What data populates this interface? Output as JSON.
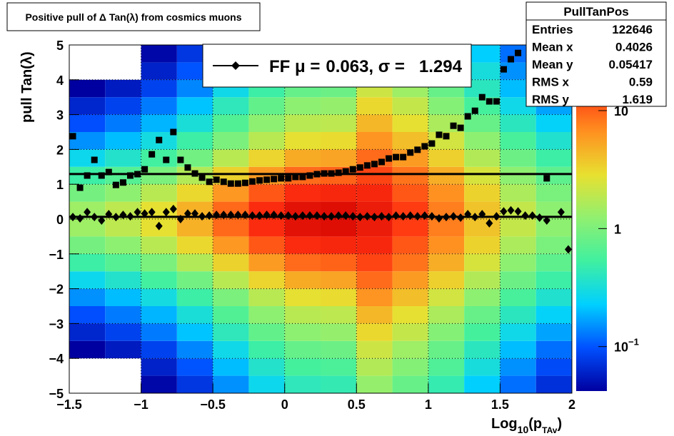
{
  "chart_data": {
    "type": "histogram2d",
    "title": "Positive pull of Δ Tan(λ) from cosmics muons",
    "x_label": {
      "main": "Log",
      "sub": "10",
      "open": "(p",
      "sub2": "TAv",
      "close": ")"
    },
    "y_label": "pull Tan(λ)",
    "xlim": [
      -1.5,
      2
    ],
    "ylim": [
      -5,
      5
    ],
    "zlim": [
      0.042,
      36
    ],
    "zlog": true,
    "grid": true,
    "xticks": [
      {
        "value": -1.5,
        "label": "−1.5"
      },
      {
        "value": -1,
        "label": "−1"
      },
      {
        "value": -0.5,
        "label": "−0.5"
      },
      0,
      0.5,
      1,
      1.5,
      2
    ],
    "yticks": [
      {
        "value": -5,
        "label": "−5"
      },
      {
        "value": -4,
        "label": "−4"
      },
      {
        "value": -3,
        "label": "−3"
      },
      {
        "value": -2,
        "label": "−2"
      },
      {
        "value": -1,
        "label": "−1"
      },
      0,
      1,
      2,
      3,
      4,
      5
    ],
    "zticks": [
      {
        "value": 0.1,
        "label": "10",
        "exponent": "−1"
      },
      1,
      10
    ],
    "palette": [
      "#0000a0",
      "#0050ff",
      "#00d0ff",
      "#40f0a0",
      "#90f070",
      "#e8e030",
      "#ff9020",
      "#ff3010",
      "#d00000"
    ],
    "xbins": [
      -1.5,
      -1.25,
      -1,
      -0.75,
      -0.5,
      -0.25,
      0,
      0.25,
      0.5,
      0.75,
      1,
      1.25,
      1.5,
      1.75,
      2
    ],
    "ybins": [
      -5,
      -4.5,
      -4,
      -3.5,
      -3,
      -2.5,
      -2,
      -1.5,
      -1,
      -0.5,
      0,
      0.5,
      1,
      1.5,
      2,
      2.5,
      3,
      3.5,
      4,
      4.5,
      5
    ],
    "z": [
      [
        0.023,
        0.03,
        0.045,
        0.075,
        0.15,
        0.27,
        0.42,
        0.45,
        1.3,
        0.81,
        0.46,
        0.23,
        0.12,
        0.07
      ],
      [
        0.03,
        0.04,
        0.06,
        0.1,
        0.2,
        0.36,
        0.56,
        0.6,
        1.7,
        1.1,
        0.62,
        0.31,
        0.15,
        0.092
      ],
      [
        0.042,
        0.056,
        0.084,
        0.14,
        0.28,
        0.5,
        0.78,
        0.84,
        2.2,
        1.4,
        0.8,
        0.4,
        0.2,
        0.12
      ],
      [
        0.063,
        0.084,
        0.13,
        0.21,
        0.42,
        0.76,
        1.2,
        1.3,
        3.1,
        2,
        1.1,
        0.56,
        0.28,
        0.17
      ],
      [
        0.096,
        0.13,
        0.19,
        0.32,
        0.64,
        1.2,
        1.8,
        1.9,
        4.4,
        2.8,
        1.6,
        0.8,
        0.4,
        0.24
      ],
      [
        0.15,
        0.2,
        0.3,
        0.5,
        1,
        1.8,
        2.8,
        3,
        6.4,
        4.1,
        2.3,
        1.2,
        0.58,
        0.35
      ],
      [
        0.27,
        0.36,
        0.54,
        0.9,
        1.8,
        3.2,
        5,
        5.4,
        9.2,
        5.9,
        3.4,
        1.7,
        0.84,
        0.5
      ],
      [
        0.5,
        0.66,
        0.99,
        1.7,
        3.3,
        5.9,
        9.2,
        9.9,
        13,
        8.5,
        4.9,
        2.4,
        1.2,
        0.73
      ],
      [
        0.92,
        1.2,
        1.8,
        3.1,
        6.1,
        11,
        17,
        18,
        18,
        11,
        6.6,
        3.3,
        1.6,
        0.98
      ],
      [
        1.4,
        1.9,
        2.8,
        4.7,
        9.4,
        17,
        26,
        28,
        22,
        14,
        7.8,
        3.9,
        2,
        1.2
      ],
      [
        1.4,
        1.9,
        2.8,
        4.7,
        9.4,
        17,
        26,
        28,
        22,
        14,
        7.8,
        3.9,
        2,
        1.2
      ],
      [
        0.92,
        1.2,
        1.8,
        3.1,
        6.1,
        11,
        17,
        18,
        18,
        11,
        6.6,
        3.3,
        1.6,
        0.98
      ],
      [
        0.5,
        0.66,
        0.99,
        1.7,
        3.3,
        5.9,
        9.2,
        9.9,
        13,
        8.5,
        4.9,
        2.4,
        1.2,
        0.73
      ],
      [
        0.27,
        0.36,
        0.54,
        0.9,
        1.8,
        3.2,
        5,
        5.4,
        9.2,
        5.9,
        3.4,
        1.7,
        0.84,
        0.5
      ],
      [
        0.15,
        0.2,
        0.3,
        0.5,
        1,
        1.8,
        2.8,
        3,
        6.4,
        4.1,
        2.3,
        1.2,
        0.58,
        0.35
      ],
      [
        0.096,
        0.13,
        0.19,
        0.32,
        0.64,
        1.2,
        1.8,
        1.9,
        4.4,
        2.8,
        1.6,
        0.8,
        0.4,
        0.24
      ],
      [
        0.063,
        0.084,
        0.13,
        0.21,
        0.42,
        0.76,
        1.2,
        1.3,
        3.1,
        2,
        1.1,
        0.56,
        0.28,
        0.17
      ],
      [
        0.042,
        0.056,
        0.084,
        0.14,
        0.28,
        0.5,
        0.78,
        0.84,
        2.2,
        1.4,
        0.8,
        0.4,
        0.2,
        0.12
      ],
      [
        0.03,
        0.04,
        0.06,
        0.1,
        0.2,
        0.36,
        0.56,
        0.6,
        1.7,
        1.1,
        0.62,
        0.31,
        0.15,
        0.092
      ],
      [
        0.023,
        0.03,
        0.045,
        0.075,
        0.15,
        0.27,
        0.42,
        0.45,
        1.3,
        0.81,
        0.46,
        0.23,
        0.12,
        0.07
      ]
    ],
    "x": [
      -1.475,
      -1.425,
      -1.375,
      -1.325,
      -1.275,
      -1.225,
      -1.175,
      -1.125,
      -1.075,
      -1.025,
      -0.975,
      -0.925,
      -0.875,
      -0.825,
      -0.775,
      -0.725,
      -0.675,
      -0.625,
      -0.575,
      -0.525,
      -0.475,
      -0.425,
      -0.375,
      -0.325,
      -0.275,
      -0.225,
      -0.175,
      -0.125,
      -0.075,
      -0.025,
      0.025,
      0.075,
      0.125,
      0.175,
      0.225,
      0.275,
      0.325,
      0.375,
      0.425,
      0.475,
      0.525,
      0.575,
      0.625,
      0.675,
      0.725,
      0.775,
      0.825,
      0.875,
      0.925,
      0.975,
      1.025,
      1.075,
      1.125,
      1.175,
      1.225,
      1.275,
      1.325,
      1.375,
      1.425,
      1.475,
      1.525,
      1.575,
      1.625,
      1.675,
      1.725,
      1.775,
      1.825,
      1.875,
      1.925,
      1.975
    ],
    "series": [
      {
        "marker": "square",
        "color": "#000000",
        "values": [
          2.38,
          0.9,
          1.25,
          1.7,
          1.25,
          1.35,
          0.98,
          1.05,
          1.25,
          1.29,
          1.43,
          1.86,
          2.27,
          1.7,
          2.5,
          1.7,
          1.48,
          1.31,
          1.19,
          1.07,
          1.13,
          1.07,
          1.02,
          1.02,
          1.04,
          1.08,
          1.11,
          1.13,
          1.15,
          1.17,
          1.17,
          1.21,
          1.21,
          1.25,
          1.29,
          1.31,
          1.31,
          1.33,
          1.37,
          1.43,
          1.48,
          1.54,
          1.58,
          1.64,
          1.74,
          1.78,
          1.78,
          1.91,
          1.99,
          2.09,
          2.17,
          2.42,
          2.38,
          2.68,
          2.62,
          2.95,
          3.11,
          3.5,
          3.38,
          3.38,
          4.3,
          4.59,
          4.77,
          null,
          null,
          null,
          1.17,
          null,
          null,
          null
        ]
      },
      {
        "marker": "diamond",
        "color": "#000000",
        "values": [
          0.06,
          0.02,
          0.2,
          0.06,
          -0.04,
          0.14,
          0.06,
          0.12,
          0.08,
          0.2,
          0.16,
          0.2,
          -0.2,
          0.2,
          0.29,
          0,
          0.16,
          0.16,
          0.08,
          0.1,
          0.12,
          0.12,
          0.12,
          0.12,
          0.12,
          0.1,
          0.1,
          0.12,
          0.12,
          0.1,
          0.1,
          0.08,
          0.1,
          0.1,
          0.1,
          0.08,
          0.08,
          0.1,
          0.1,
          0.08,
          0.06,
          0.08,
          0.06,
          0.08,
          0.06,
          0.1,
          0.08,
          0.1,
          0.08,
          0.1,
          0.08,
          0.02,
          0.06,
          0.08,
          0.04,
          0.14,
          0.06,
          0.14,
          -0.12,
          0.08,
          0.22,
          0.25,
          0.22,
          0.1,
          0.1,
          0.04,
          -0.04,
          null,
          0.2,
          -0.87
        ]
      }
    ],
    "legend": {
      "prefix": "FF μ =",
      "mu": 0.063,
      "mid": ", σ =",
      "sigma": 1.294
    },
    "stats": {
      "name": "PullTanPos",
      "rows": [
        {
          "label": "Entries",
          "value": 122646
        },
        {
          "label": "Mean x",
          "value": 0.4026
        },
        {
          "label": "Mean y",
          "value": 0.05417
        },
        {
          "label": "RMS x",
          "value": 0.59
        },
        {
          "label": "RMS y",
          "value": 1.619
        }
      ]
    }
  }
}
